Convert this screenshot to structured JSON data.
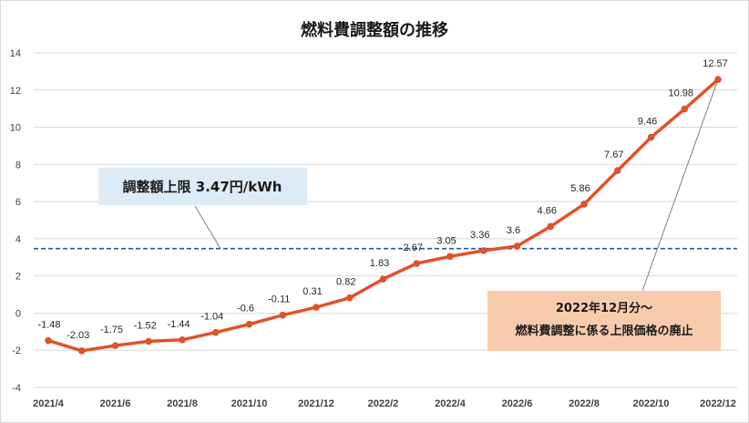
{
  "colors": {
    "series_line": "#E0522B",
    "cap_line": "#1F5C99",
    "cap_box": "#DDEBF7",
    "abolish_box": "#F8CBAD",
    "grid": "#D9D9D9",
    "leader": "#7F7F7F"
  },
  "chart_data": {
    "type": "line",
    "title": "燃料費調整額の推移",
    "xlabel": "",
    "ylabel": "",
    "x": [
      "2021/4",
      "2021/5",
      "2021/6",
      "2021/7",
      "2021/8",
      "2021/9",
      "2021/10",
      "2021/11",
      "2021/12",
      "2022/1",
      "2022/2",
      "2022/3",
      "2022/4",
      "2022/5",
      "2022/6",
      "2022/7",
      "2022/8",
      "2022/9",
      "2022/10",
      "2022/11",
      "2022/12"
    ],
    "x_tick_labels": [
      "2021/4",
      "2021/6",
      "2021/8",
      "2021/10",
      "2021/12",
      "2022/2",
      "2022/4",
      "2022/6",
      "2022/8",
      "2022/10",
      "2022/12"
    ],
    "series": [
      {
        "values": [
          -1.48,
          -2.03,
          -1.75,
          -1.52,
          -1.44,
          -1.04,
          -0.6,
          -0.11,
          0.31,
          0.82,
          1.83,
          2.67,
          3.05,
          3.36,
          3.6,
          4.66,
          5.86,
          7.67,
          9.46,
          10.98,
          12.57
        ]
      }
    ],
    "data_labels": [
      "-1.48",
      "-2.03",
      "-1.75",
      "-1.52",
      "-1.44",
      "-1.04",
      "-0.6",
      "-0.11",
      "0.31",
      "0.82",
      "1.83",
      "2.67",
      "3.05",
      "3.36",
      "3.6",
      "4.66",
      "5.86",
      "7.67",
      "9.46",
      "10.98",
      "12.57"
    ],
    "ylim": [
      -4,
      14
    ],
    "y_ticks": [
      -4,
      -2,
      0,
      2,
      4,
      6,
      8,
      10,
      12,
      14
    ],
    "grid": "horizontal",
    "reference_line": {
      "value": 3.47,
      "style": "dashed"
    },
    "annotations": {
      "cap": "調整額上限 3.47円/kWh",
      "abolish_line1": "2022年12月分～",
      "abolish_line2": "燃料費調整に係る上限価格の廃止"
    }
  }
}
